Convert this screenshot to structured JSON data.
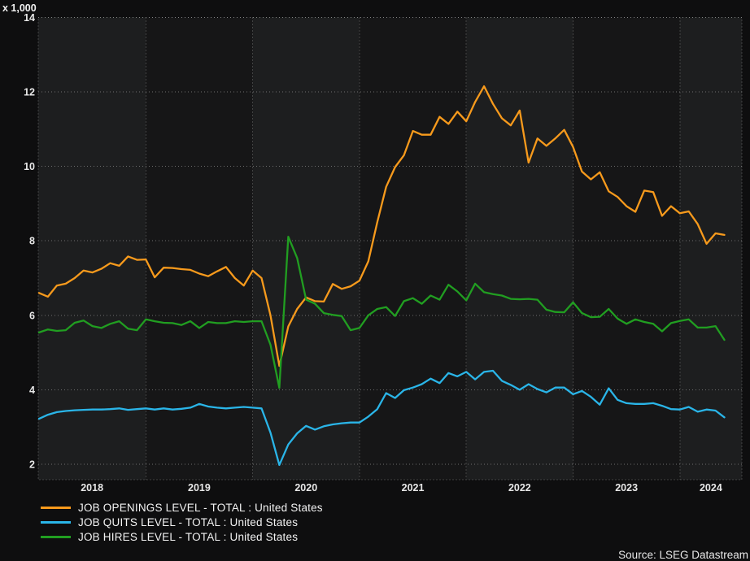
{
  "chart": {
    "unit_label": "x 1,000",
    "source": "Source: LSEG Datastream"
  },
  "legend": {
    "items": [
      {
        "label": "JOB OPENINGS LEVEL - TOTAL : United States",
        "color": "#f79a1c"
      },
      {
        "label": "JOB QUITS LEVEL - TOTAL : United States",
        "color": "#2ab5e8"
      },
      {
        "label": "JOB HIRES LEVEL - TOTAL : United States",
        "color": "#219e21"
      }
    ]
  },
  "chart_data": {
    "type": "line",
    "title": "",
    "y_unit_label": "x 1,000",
    "frequency": "monthly",
    "start_month": "2018-01",
    "end_month": "2024-06",
    "x_tick_labels": [
      "2018",
      "2019",
      "2020",
      "2021",
      "2022",
      "2023",
      "2024"
    ],
    "y_ticks": [
      2,
      4,
      6,
      8,
      10,
      12,
      14
    ],
    "ylim": [
      1.6,
      14
    ],
    "grid": "dotted",
    "plot_bands": "alternating-year-shading",
    "legend_position": "bottom-left",
    "series": [
      {
        "name": "JOB OPENINGS LEVEL - TOTAL : United States",
        "color": "#f79a1c",
        "values": [
          6.6,
          6.5,
          6.8,
          6.85,
          7.0,
          7.2,
          7.15,
          7.25,
          7.4,
          7.33,
          7.58,
          7.49,
          7.5,
          7.02,
          7.28,
          7.27,
          7.24,
          7.22,
          7.12,
          7.05,
          7.18,
          7.3,
          7.0,
          6.8,
          7.2,
          7.0,
          6.0,
          4.64,
          5.7,
          6.17,
          6.48,
          6.38,
          6.37,
          6.84,
          6.71,
          6.78,
          6.93,
          7.45,
          8.5,
          9.45,
          9.98,
          10.3,
          10.95,
          10.85,
          10.85,
          11.33,
          11.14,
          11.47,
          11.21,
          11.73,
          12.15,
          11.68,
          11.29,
          11.1,
          11.5,
          10.1,
          10.75,
          10.55,
          10.75,
          10.98,
          10.52,
          9.86,
          9.65,
          9.84,
          9.33,
          9.18,
          8.93,
          8.78,
          9.35,
          9.31,
          8.67,
          8.93,
          8.74,
          8.79,
          8.45,
          7.92,
          8.2,
          8.16
        ]
      },
      {
        "name": "JOB QUITS LEVEL - TOTAL : United States",
        "color": "#2ab5e8",
        "values": [
          3.22,
          3.33,
          3.4,
          3.43,
          3.45,
          3.46,
          3.47,
          3.47,
          3.48,
          3.5,
          3.46,
          3.48,
          3.5,
          3.47,
          3.5,
          3.47,
          3.49,
          3.52,
          3.62,
          3.55,
          3.52,
          3.5,
          3.52,
          3.54,
          3.52,
          3.5,
          2.85,
          1.98,
          2.53,
          2.83,
          3.03,
          2.93,
          3.02,
          3.07,
          3.1,
          3.12,
          3.12,
          3.28,
          3.48,
          3.91,
          3.78,
          3.99,
          4.06,
          4.15,
          4.3,
          4.18,
          4.45,
          4.36,
          4.48,
          4.28,
          4.48,
          4.51,
          4.24,
          4.13,
          4.0,
          4.15,
          4.02,
          3.93,
          4.06,
          4.06,
          3.88,
          3.97,
          3.81,
          3.6,
          4.04,
          3.73,
          3.64,
          3.62,
          3.62,
          3.64,
          3.57,
          3.48,
          3.47,
          3.54,
          3.41,
          3.47,
          3.44,
          3.26
        ]
      },
      {
        "name": "JOB HIRES LEVEL - TOTAL : United States",
        "color": "#219e21",
        "values": [
          5.54,
          5.62,
          5.58,
          5.6,
          5.8,
          5.86,
          5.71,
          5.66,
          5.77,
          5.84,
          5.64,
          5.6,
          5.89,
          5.84,
          5.8,
          5.79,
          5.74,
          5.84,
          5.66,
          5.82,
          5.79,
          5.79,
          5.84,
          5.82,
          5.84,
          5.84,
          5.21,
          4.05,
          8.11,
          7.54,
          6.42,
          6.31,
          6.06,
          6.01,
          5.98,
          5.6,
          5.66,
          6.0,
          6.17,
          6.22,
          5.98,
          6.38,
          6.46,
          6.31,
          6.53,
          6.42,
          6.82,
          6.64,
          6.4,
          6.85,
          6.62,
          6.57,
          6.53,
          6.44,
          6.43,
          6.44,
          6.42,
          6.15,
          6.09,
          6.08,
          6.35,
          6.06,
          5.95,
          5.96,
          6.17,
          5.91,
          5.77,
          5.89,
          5.82,
          5.77,
          5.57,
          5.79,
          5.85,
          5.89,
          5.67,
          5.67,
          5.71,
          5.34
        ]
      }
    ],
    "colors": {
      "page_background": "#0e0e0f",
      "band_light": "#1d1e1f",
      "band_dark": "#161617",
      "gridline": "#8a8a8a",
      "axis_text": "#e8e8e8"
    }
  }
}
